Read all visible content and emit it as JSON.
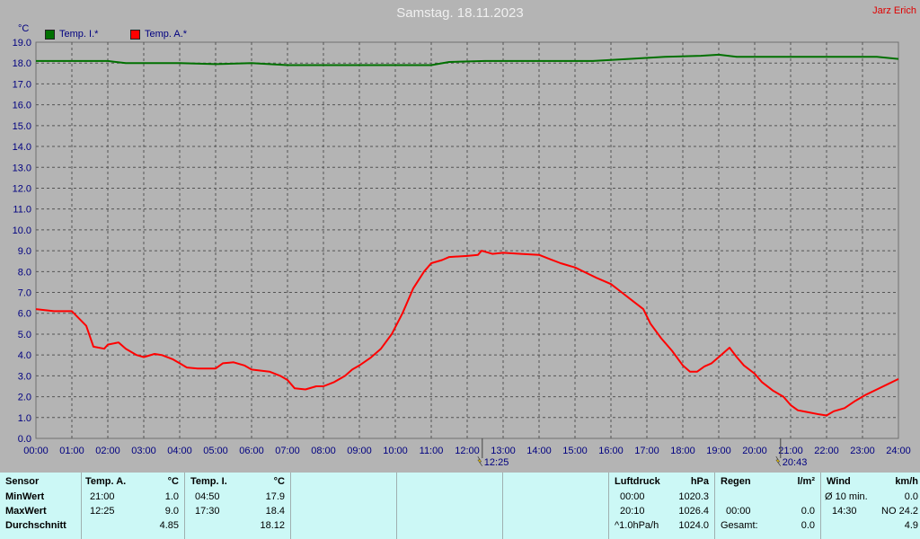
{
  "header": {
    "title": "Samstag. 18.11.2023",
    "author": "Jarz Erich",
    "unit": "°C"
  },
  "legend": [
    {
      "label": "Temp. I.*",
      "color": "#007000"
    },
    {
      "label": "Temp. A.*",
      "color": "#ff0000"
    }
  ],
  "markers": [
    {
      "time": "12:25",
      "hour": 12.42
    },
    {
      "time": "20:43",
      "hour": 20.72
    }
  ],
  "chart_data": {
    "type": "line",
    "xlim": [
      0,
      24
    ],
    "ylim": [
      0,
      19
    ],
    "grid": true,
    "x_ticks": [
      "00:00",
      "01:00",
      "02:00",
      "03:00",
      "04:00",
      "05:00",
      "06:00",
      "07:00",
      "08:00",
      "09:00",
      "10:00",
      "11:00",
      "12:00",
      "13:00",
      "14:00",
      "15:00",
      "16:00",
      "17:00",
      "18:00",
      "19:00",
      "20:00",
      "21:00",
      "22:00",
      "23:00",
      "24:00"
    ],
    "y_ticks": [
      "0.0",
      "1.0",
      "2.0",
      "3.0",
      "4.0",
      "5.0",
      "6.0",
      "7.0",
      "8.0",
      "9.0",
      "10.0",
      "11.0",
      "12.0",
      "13.0",
      "14.0",
      "15.0",
      "16.0",
      "17.0",
      "18.0",
      "19.0"
    ],
    "series": [
      {
        "name": "Temp. I.*",
        "color": "#007000",
        "points": [
          [
            0,
            18.1
          ],
          [
            2,
            18.1
          ],
          [
            2.5,
            18.0
          ],
          [
            4,
            18.0
          ],
          [
            5,
            17.95
          ],
          [
            6,
            18.0
          ],
          [
            7,
            17.9
          ],
          [
            8,
            17.9
          ],
          [
            9,
            17.9
          ],
          [
            11,
            17.9
          ],
          [
            11.5,
            18.05
          ],
          [
            12.5,
            18.1
          ],
          [
            14,
            18.1
          ],
          [
            15.5,
            18.1
          ],
          [
            16.5,
            18.2
          ],
          [
            17.5,
            18.3
          ],
          [
            18.5,
            18.35
          ],
          [
            19,
            18.4
          ],
          [
            19.5,
            18.3
          ],
          [
            21,
            18.3
          ],
          [
            23.4,
            18.3
          ],
          [
            24,
            18.2
          ]
        ]
      },
      {
        "name": "Temp. A.*",
        "color": "#ff0000",
        "points": [
          [
            0,
            6.2
          ],
          [
            0.5,
            6.1
          ],
          [
            1,
            6.1
          ],
          [
            1.4,
            5.4
          ],
          [
            1.6,
            4.4
          ],
          [
            1.9,
            4.3
          ],
          [
            2,
            4.5
          ],
          [
            2.3,
            4.6
          ],
          [
            2.5,
            4.3
          ],
          [
            2.8,
            4.0
          ],
          [
            3,
            3.9
          ],
          [
            3.3,
            4.05
          ],
          [
            3.5,
            4.0
          ],
          [
            3.8,
            3.8
          ],
          [
            4,
            3.6
          ],
          [
            4.2,
            3.4
          ],
          [
            4.5,
            3.35
          ],
          [
            4.8,
            3.35
          ],
          [
            5,
            3.35
          ],
          [
            5.2,
            3.6
          ],
          [
            5.5,
            3.65
          ],
          [
            5.8,
            3.5
          ],
          [
            6,
            3.3
          ],
          [
            6.5,
            3.2
          ],
          [
            6.8,
            3.0
          ],
          [
            7,
            2.8
          ],
          [
            7.2,
            2.4
          ],
          [
            7.5,
            2.35
          ],
          [
            7.8,
            2.5
          ],
          [
            8,
            2.5
          ],
          [
            8.3,
            2.7
          ],
          [
            8.6,
            3.0
          ],
          [
            8.8,
            3.3
          ],
          [
            9,
            3.5
          ],
          [
            9.3,
            3.85
          ],
          [
            9.6,
            4.3
          ],
          [
            9.9,
            5.0
          ],
          [
            10.2,
            6.0
          ],
          [
            10.5,
            7.2
          ],
          [
            10.8,
            8.0
          ],
          [
            11,
            8.4
          ],
          [
            11.3,
            8.55
          ],
          [
            11.5,
            8.7
          ],
          [
            12,
            8.75
          ],
          [
            12.3,
            8.8
          ],
          [
            12.4,
            9.0
          ],
          [
            12.7,
            8.85
          ],
          [
            13,
            8.9
          ],
          [
            13.5,
            8.85
          ],
          [
            14,
            8.8
          ],
          [
            14.3,
            8.6
          ],
          [
            14.6,
            8.4
          ],
          [
            15,
            8.2
          ],
          [
            15.3,
            7.95
          ],
          [
            15.6,
            7.7
          ],
          [
            16,
            7.4
          ],
          [
            16.3,
            7.0
          ],
          [
            16.6,
            6.6
          ],
          [
            16.9,
            6.2
          ],
          [
            17.1,
            5.5
          ],
          [
            17.4,
            4.8
          ],
          [
            17.7,
            4.2
          ],
          [
            18,
            3.5
          ],
          [
            18.2,
            3.2
          ],
          [
            18.4,
            3.2
          ],
          [
            18.6,
            3.45
          ],
          [
            18.8,
            3.6
          ],
          [
            19,
            3.9
          ],
          [
            19.3,
            4.35
          ],
          [
            19.5,
            3.9
          ],
          [
            19.7,
            3.5
          ],
          [
            20,
            3.1
          ],
          [
            20.2,
            2.7
          ],
          [
            20.5,
            2.3
          ],
          [
            20.8,
            2.0
          ],
          [
            21,
            1.6
          ],
          [
            21.2,
            1.35
          ],
          [
            21.5,
            1.25
          ],
          [
            21.8,
            1.15
          ],
          [
            22,
            1.1
          ],
          [
            22.2,
            1.3
          ],
          [
            22.5,
            1.45
          ],
          [
            22.8,
            1.8
          ],
          [
            23.1,
            2.1
          ],
          [
            23.4,
            2.35
          ],
          [
            23.7,
            2.6
          ],
          [
            24,
            2.85
          ]
        ]
      }
    ]
  },
  "table": {
    "sensor": {
      "title": "Sensor",
      "rows": [
        "MinWert",
        "MaxWert",
        "Durchschnitt"
      ]
    },
    "temp_a": {
      "title": "Temp. A.",
      "unit": "°C",
      "times": [
        "21:00",
        "12:25",
        ""
      ],
      "values": [
        "1.0",
        "9.0",
        "4.85"
      ]
    },
    "temp_i": {
      "title": "Temp. I.",
      "unit": "°C",
      "times": [
        "04:50",
        "17:30",
        ""
      ],
      "values": [
        "17.9",
        "18.4",
        "18.12"
      ]
    },
    "pressure": {
      "title": "Luftdruck",
      "unit": "hPa",
      "times": [
        "00:00",
        "20:10",
        "^1.0hPa/h"
      ],
      "values": [
        "1020.3",
        "1026.4",
        "1024.0"
      ]
    },
    "rain": {
      "title": "Regen",
      "unit": "l/m²",
      "times": [
        "",
        "00:00",
        "Gesamt:"
      ],
      "values": [
        "",
        "0.0",
        "0.0"
      ]
    },
    "wind": {
      "title": "Wind",
      "unit": "km/h",
      "times": [
        "Ø 10 min.",
        "14:30",
        ""
      ],
      "values": [
        "0.0",
        "NO 24.2",
        "4.9"
      ]
    }
  }
}
